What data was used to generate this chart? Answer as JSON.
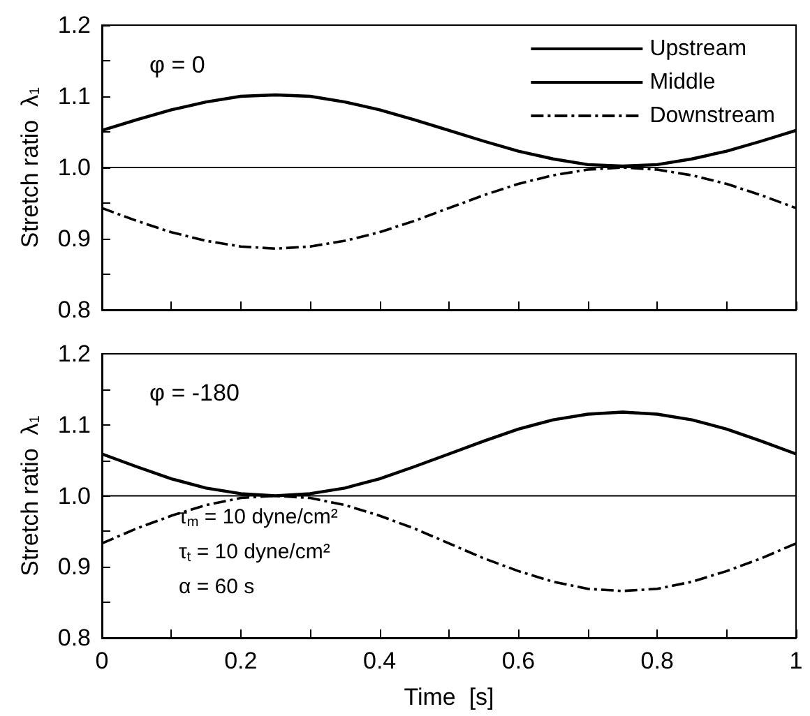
{
  "chart_data": [
    {
      "type": "line",
      "annotations": [
        "φ = 0"
      ],
      "ylabel": "Stretch ratio  λ$_{1}$",
      "legend": "top right",
      "grid": false,
      "marker": "none",
      "tick_labels": "y",
      "x": [
        0,
        0.05,
        0.1,
        0.15,
        0.2,
        0.25,
        0.3,
        0.35,
        0.4,
        0.45,
        0.5,
        0.55,
        0.6,
        0.65,
        0.7,
        0.75,
        0.8,
        0.85,
        0.9,
        0.95,
        1
      ],
      "xlim": [
        0,
        1
      ],
      "xticks": [
        {
          "value": 0,
          "label": null
        },
        {
          "value": 0.1,
          "label": null
        },
        {
          "value": 0.2,
          "label": null
        },
        {
          "value": 0.3,
          "label": null
        },
        {
          "value": 0.4,
          "label": null
        },
        {
          "value": 0.5,
          "label": null
        },
        {
          "value": 0.6,
          "label": null
        },
        {
          "value": 0.7,
          "label": null
        },
        {
          "value": 0.8,
          "label": null
        },
        {
          "value": 0.9,
          "label": null
        },
        {
          "value": 1,
          "label": null
        }
      ],
      "ylim": [
        0.8,
        1.2
      ],
      "yticks": [
        0.8,
        {
          "value": 0.85,
          "label": null
        },
        0.9,
        {
          "value": 0.95,
          "label": null
        },
        {
          "value": 1,
          "label": "1.0"
        },
        {
          "value": 1.05,
          "label": null
        },
        1.1,
        {
          "value": 1.15,
          "label": null
        },
        1.2
      ],
      "series": [
        {
          "name": "Upstream",
          "color": "#000000",
          "line_style": "solid",
          "values": [
            1.052,
            1.067,
            1.081,
            1.092,
            1.1,
            1.102,
            1.1,
            1.092,
            1.081,
            1.067,
            1.052,
            1.037,
            1.023,
            1.012,
            1.004,
            1.002,
            1.004,
            1.012,
            1.023,
            1.037,
            1.052
          ]
        },
        {
          "name": "Middle",
          "color": "#000000",
          "line_style": "solid",
          "values": [
            1,
            1,
            1,
            1,
            1,
            1,
            1,
            1,
            1,
            1,
            1,
            1,
            1,
            1,
            1,
            1,
            1,
            1,
            1,
            1,
            1
          ]
        },
        {
          "name": "Downstream",
          "color": "#000000",
          "line_style": "dashed",
          "values": [
            0.943,
            0.925,
            0.909,
            0.897,
            0.889,
            0.886,
            0.889,
            0.897,
            0.909,
            0.925,
            0.943,
            0.961,
            0.977,
            0.989,
            0.997,
            1.0,
            0.997,
            0.989,
            0.977,
            0.961,
            0.943
          ]
        }
      ]
    },
    {
      "type": "line",
      "annotations": [
        "φ = -180",
        "τ$_{m}$ = 10 dyne/cm²",
        "τ$_{t}$ = 10 dyne/cm²",
        "α = 60 s"
      ],
      "xlabel": "Time  [s]",
      "ylabel": "Stretch ratio  λ$_{1}$",
      "legend": false,
      "grid": false,
      "marker": "none",
      "x": [
        0,
        0.05,
        0.1,
        0.15,
        0.2,
        0.25,
        0.3,
        0.35,
        0.4,
        0.45,
        0.5,
        0.55,
        0.6,
        0.65,
        0.7,
        0.75,
        0.8,
        0.85,
        0.9,
        0.95,
        1
      ],
      "xlim": [
        0,
        1
      ],
      "xticks": [
        0,
        {
          "value": 0.1,
          "label": null
        },
        0.2,
        {
          "value": 0.3,
          "label": null
        },
        0.4,
        {
          "value": 0.5,
          "label": null
        },
        0.6,
        {
          "value": 0.7,
          "label": null
        },
        0.8,
        {
          "value": 0.9,
          "label": null
        },
        1
      ],
      "ylim": [
        0.8,
        1.2
      ],
      "yticks": [
        0.8,
        {
          "value": 0.85,
          "label": null
        },
        0.9,
        {
          "value": 0.95,
          "label": null
        },
        {
          "value": 1,
          "label": "1.0"
        },
        {
          "value": 1.05,
          "label": null
        },
        1.1,
        {
          "value": 1.15,
          "label": null
        },
        1.2
      ],
      "series": [
        {
          "color": "#000000",
          "line_style": "solid",
          "values": [
            1.059,
            1.041,
            1.024,
            1.011,
            1.003,
            1.0,
            1.003,
            1.011,
            1.024,
            1.041,
            1.059,
            1.077,
            1.094,
            1.107,
            1.115,
            1.118,
            1.115,
            1.107,
            1.094,
            1.077,
            1.059
          ]
        },
        {
          "color": "#000000",
          "line_style": "solid",
          "values": [
            1,
            1,
            1,
            1,
            1,
            1,
            1,
            1,
            1,
            1,
            1,
            1,
            1,
            1,
            1,
            1,
            1,
            1,
            1,
            1,
            1
          ]
        },
        {
          "color": "#000000",
          "line_style": "dashed",
          "values": [
            0.933,
            0.954,
            0.972,
            0.987,
            0.997,
            1.0,
            0.997,
            0.987,
            0.972,
            0.954,
            0.933,
            0.912,
            0.894,
            0.879,
            0.869,
            0.866,
            0.869,
            0.879,
            0.894,
            0.912,
            0.933
          ]
        }
      ]
    }
  ]
}
